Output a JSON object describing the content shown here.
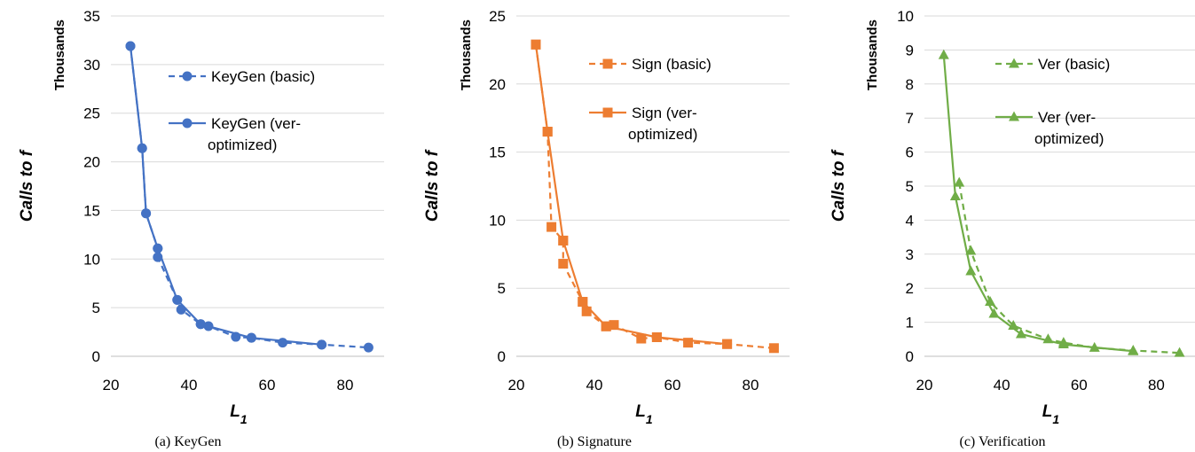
{
  "chart_data": [
    {
      "type": "line",
      "caption": "(a) KeyGen",
      "xlabel": "L",
      "xlabel_sub": "1",
      "ylabel": "Calls to f",
      "ylabel_units": "Thousands",
      "xlim": [
        20,
        90
      ],
      "ylim": [
        0,
        35
      ],
      "xticks": [
        20,
        40,
        60,
        80
      ],
      "yticks": [
        0,
        5,
        10,
        15,
        20,
        25,
        30,
        35
      ],
      "grid": true,
      "legend_position": "right",
      "color": "#4472C4",
      "marker": "circle",
      "series": [
        {
          "name": "KeyGen (basic)",
          "dash": true,
          "x": [
            25,
            28,
            29,
            32,
            32,
            37,
            38,
            43,
            45,
            52,
            56,
            64,
            74,
            86
          ],
          "y": [
            31.9,
            21.4,
            14.7,
            11.1,
            10.2,
            5.8,
            4.8,
            3.3,
            3.1,
            2.0,
            1.9,
            1.4,
            1.2,
            0.9
          ]
        },
        {
          "name": "KeyGen (ver-optimized)",
          "dash": false,
          "x": [
            25,
            28,
            29,
            32,
            37,
            43,
            56,
            74
          ],
          "y": [
            31.9,
            21.4,
            14.7,
            11.1,
            5.8,
            3.3,
            1.9,
            1.2
          ]
        }
      ]
    },
    {
      "type": "line",
      "caption": "(b) Signature",
      "xlabel": "L",
      "xlabel_sub": "1",
      "ylabel": "Calls to f",
      "ylabel_units": "Thousands",
      "xlim": [
        20,
        90
      ],
      "ylim": [
        0,
        25
      ],
      "xticks": [
        20,
        40,
        60,
        80
      ],
      "yticks": [
        0,
        5,
        10,
        15,
        20,
        25
      ],
      "grid": true,
      "legend_position": "right",
      "color": "#ED7D31",
      "marker": "square",
      "series": [
        {
          "name": "Sign (basic)",
          "dash": true,
          "x": [
            25,
            28,
            29,
            32,
            32,
            37,
            38,
            43,
            45,
            52,
            56,
            64,
            74,
            86
          ],
          "y": [
            22.9,
            16.5,
            9.5,
            8.5,
            6.8,
            4.0,
            3.3,
            2.2,
            2.3,
            1.3,
            1.4,
            1.0,
            0.9,
            0.6
          ]
        },
        {
          "name": "Sign (ver-optimized)",
          "dash": false,
          "x": [
            25,
            28,
            32,
            37,
            43,
            56,
            74
          ],
          "y": [
            22.9,
            16.5,
            8.5,
            4.0,
            2.2,
            1.4,
            0.9
          ]
        }
      ]
    },
    {
      "type": "line",
      "caption": "(c) Verification",
      "xlabel": "L",
      "xlabel_sub": "1",
      "ylabel": "Calls to f",
      "ylabel_units": "Thousands",
      "xlim": [
        20,
        90
      ],
      "ylim": [
        0,
        10
      ],
      "xticks": [
        20,
        40,
        60,
        80
      ],
      "yticks": [
        0,
        1,
        2,
        3,
        4,
        5,
        6,
        7,
        8,
        9,
        10
      ],
      "grid": true,
      "legend_position": "right",
      "color": "#70AD47",
      "marker": "triangle",
      "series": [
        {
          "name": "Ver (basic)",
          "dash": true,
          "x": [
            29,
            32,
            37,
            43,
            52,
            56,
            64,
            74,
            86
          ],
          "y": [
            5.1,
            3.1,
            1.6,
            0.9,
            0.5,
            0.4,
            0.25,
            0.17,
            0.1
          ]
        },
        {
          "name": "Ver (ver-optimized)",
          "dash": false,
          "x": [
            25,
            28,
            32,
            38,
            45,
            56,
            74
          ],
          "y": [
            8.85,
            4.7,
            2.5,
            1.25,
            0.65,
            0.35,
            0.15
          ]
        }
      ]
    }
  ]
}
